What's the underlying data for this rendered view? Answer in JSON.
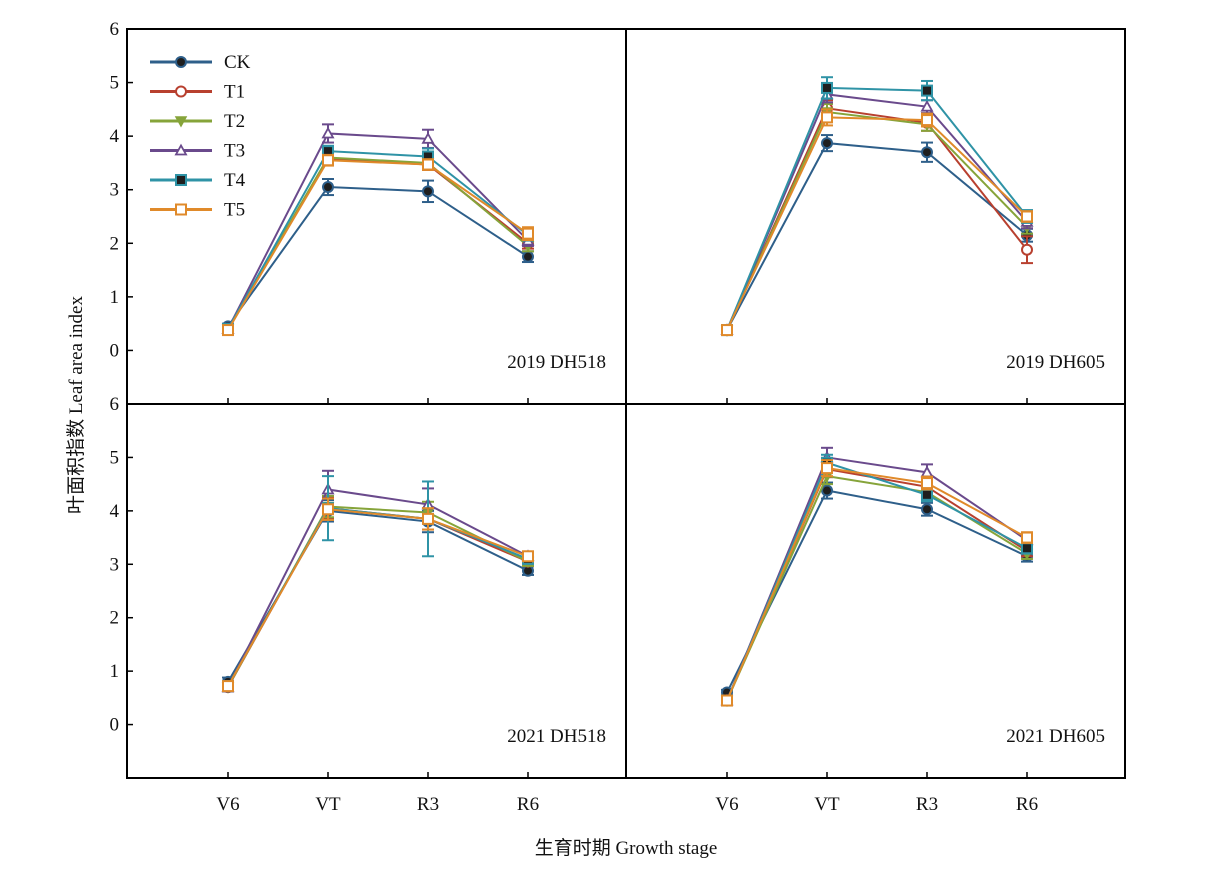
{
  "figure": {
    "ylabel": "叶面积指数 Leaf area index",
    "xlabel": "生育时期 Growth stage"
  },
  "chart_data": {
    "type": "line",
    "categories": [
      "V6",
      "VT",
      "R3",
      "R6"
    ],
    "ylim": [
      -1,
      6
    ],
    "yticks": [
      0,
      1,
      2,
      3,
      4,
      5,
      6
    ],
    "grid": false,
    "legend_position": "top-left",
    "legend": [
      {
        "name": "CK",
        "color": "#2e5f8a",
        "marker": "filled-circle"
      },
      {
        "name": "T1",
        "color": "#b8402f",
        "marker": "open-circle"
      },
      {
        "name": "T2",
        "color": "#86a43a",
        "marker": "down-triangle"
      },
      {
        "name": "T3",
        "color": "#6a4a8c",
        "marker": "open-up-triangle"
      },
      {
        "name": "T4",
        "color": "#2f93a6",
        "marker": "filled-square"
      },
      {
        "name": "T5",
        "color": "#e08a2a",
        "marker": "open-square"
      }
    ],
    "panels": [
      {
        "label": "2019 DH518",
        "series": [
          {
            "name": "CK",
            "values": [
              0.45,
              3.05,
              2.97,
              1.75
            ],
            "errors": [
              0.05,
              0.15,
              0.2,
              0.1
            ]
          },
          {
            "name": "T1",
            "values": [
              0.4,
              3.57,
              3.47,
              2.0
            ],
            "errors": [
              0.05,
              0.1,
              0.1,
              0.1
            ]
          },
          {
            "name": "T2",
            "values": [
              0.4,
              3.6,
              3.5,
              1.95
            ],
            "errors": [
              0.05,
              0.1,
              0.1,
              0.1
            ]
          },
          {
            "name": "T3",
            "values": [
              0.4,
              4.05,
              3.95,
              2.05
            ],
            "errors": [
              0.05,
              0.17,
              0.17,
              0.1
            ]
          },
          {
            "name": "T4",
            "values": [
              0.4,
              3.72,
              3.62,
              2.15
            ],
            "errors": [
              0.05,
              0.1,
              0.15,
              0.1
            ]
          },
          {
            "name": "T5",
            "values": [
              0.38,
              3.55,
              3.47,
              2.18
            ],
            "errors": [
              0.05,
              0.1,
              0.1,
              0.12
            ]
          }
        ]
      },
      {
        "label": "2019 DH605",
        "series": [
          {
            "name": "CK",
            "values": [
              0.38,
              3.87,
              3.7,
              2.15
            ],
            "errors": [
              0.03,
              0.15,
              0.18,
              0.12
            ]
          },
          {
            "name": "T1",
            "values": [
              0.38,
              4.52,
              4.25,
              1.88
            ],
            "errors": [
              0.03,
              0.15,
              0.15,
              0.25
            ]
          },
          {
            "name": "T2",
            "values": [
              0.38,
              4.45,
              4.22,
              2.3
            ],
            "errors": [
              0.03,
              0.15,
              0.12,
              0.12
            ]
          },
          {
            "name": "T3",
            "values": [
              0.38,
              4.78,
              4.55,
              2.4
            ],
            "errors": [
              0.03,
              0.15,
              0.12,
              0.12
            ]
          },
          {
            "name": "T4",
            "values": [
              0.38,
              4.9,
              4.85,
              2.5
            ],
            "errors": [
              0.03,
              0.2,
              0.18,
              0.12
            ]
          },
          {
            "name": "T5",
            "values": [
              0.38,
              4.35,
              4.3,
              2.5
            ],
            "errors": [
              0.03,
              0.15,
              0.12,
              0.1
            ]
          }
        ]
      },
      {
        "label": "2021 DH518",
        "series": [
          {
            "name": "CK",
            "values": [
              0.8,
              4.0,
              3.8,
              2.88
            ],
            "errors": [
              0.08,
              0.2,
              0.2,
              0.08
            ]
          },
          {
            "name": "T1",
            "values": [
              0.7,
              4.05,
              3.85,
              3.05
            ],
            "errors": [
              0.08,
              0.2,
              0.2,
              0.08
            ]
          },
          {
            "name": "T2",
            "values": [
              0.7,
              4.08,
              3.97,
              3.05
            ],
            "errors": [
              0.08,
              0.2,
              0.2,
              0.08
            ]
          },
          {
            "name": "T3",
            "values": [
              0.7,
              4.4,
              4.12,
              3.15
            ],
            "errors": [
              0.08,
              0.35,
              0.3,
              0.08
            ]
          },
          {
            "name": "T4",
            "values": [
              0.72,
              4.05,
              3.85,
              3.1
            ],
            "errors": [
              0.08,
              0.6,
              0.7,
              0.08
            ]
          },
          {
            "name": "T5",
            "values": [
              0.72,
              4.03,
              3.85,
              3.15
            ],
            "errors": [
              0.08,
              0.2,
              0.2,
              0.08
            ]
          }
        ]
      },
      {
        "label": "2021 DH605",
        "series": [
          {
            "name": "CK",
            "values": [
              0.6,
              4.38,
              4.03,
              3.15
            ],
            "errors": [
              0.05,
              0.15,
              0.12,
              0.1
            ]
          },
          {
            "name": "T1",
            "values": [
              0.45,
              4.78,
              4.45,
              3.25
            ],
            "errors": [
              0.05,
              0.15,
              0.12,
              0.1
            ]
          },
          {
            "name": "T2",
            "values": [
              0.45,
              4.65,
              4.35,
              3.2
            ],
            "errors": [
              0.05,
              0.15,
              0.12,
              0.1
            ]
          },
          {
            "name": "T3",
            "values": [
              0.45,
              5.0,
              4.72,
              3.45
            ],
            "errors": [
              0.05,
              0.18,
              0.15,
              0.1
            ]
          },
          {
            "name": "T4",
            "values": [
              0.45,
              4.9,
              4.3,
              3.3
            ],
            "errors": [
              0.05,
              0.15,
              0.12,
              0.1
            ]
          },
          {
            "name": "T5",
            "values": [
              0.45,
              4.8,
              4.52,
              3.5
            ],
            "errors": [
              0.05,
              0.15,
              0.12,
              0.1
            ]
          }
        ]
      }
    ]
  }
}
